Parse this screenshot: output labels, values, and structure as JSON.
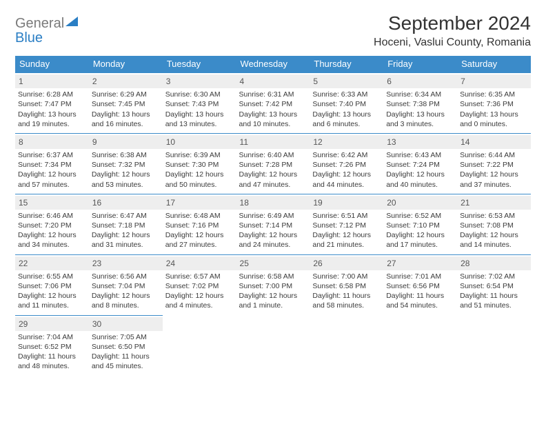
{
  "logo": {
    "general": "General",
    "blue": "Blue"
  },
  "title": "September 2024",
  "subtitle": "Hoceni, Vaslui County, Romania",
  "headers": [
    "Sunday",
    "Monday",
    "Tuesday",
    "Wednesday",
    "Thursday",
    "Friday",
    "Saturday"
  ],
  "colors": {
    "header_bg": "#3b8bc9",
    "header_text": "#ffffff",
    "daynum_bg": "#eeeeee",
    "border": "#3b8bc9"
  },
  "days": [
    {
      "n": "1",
      "sunrise": "6:28 AM",
      "sunset": "7:47 PM",
      "daylight": "13 hours and 19 minutes."
    },
    {
      "n": "2",
      "sunrise": "6:29 AM",
      "sunset": "7:45 PM",
      "daylight": "13 hours and 16 minutes."
    },
    {
      "n": "3",
      "sunrise": "6:30 AM",
      "sunset": "7:43 PM",
      "daylight": "13 hours and 13 minutes."
    },
    {
      "n": "4",
      "sunrise": "6:31 AM",
      "sunset": "7:42 PM",
      "daylight": "13 hours and 10 minutes."
    },
    {
      "n": "5",
      "sunrise": "6:33 AM",
      "sunset": "7:40 PM",
      "daylight": "13 hours and 6 minutes."
    },
    {
      "n": "6",
      "sunrise": "6:34 AM",
      "sunset": "7:38 PM",
      "daylight": "13 hours and 3 minutes."
    },
    {
      "n": "7",
      "sunrise": "6:35 AM",
      "sunset": "7:36 PM",
      "daylight": "13 hours and 0 minutes."
    },
    {
      "n": "8",
      "sunrise": "6:37 AM",
      "sunset": "7:34 PM",
      "daylight": "12 hours and 57 minutes."
    },
    {
      "n": "9",
      "sunrise": "6:38 AM",
      "sunset": "7:32 PM",
      "daylight": "12 hours and 53 minutes."
    },
    {
      "n": "10",
      "sunrise": "6:39 AM",
      "sunset": "7:30 PM",
      "daylight": "12 hours and 50 minutes."
    },
    {
      "n": "11",
      "sunrise": "6:40 AM",
      "sunset": "7:28 PM",
      "daylight": "12 hours and 47 minutes."
    },
    {
      "n": "12",
      "sunrise": "6:42 AM",
      "sunset": "7:26 PM",
      "daylight": "12 hours and 44 minutes."
    },
    {
      "n": "13",
      "sunrise": "6:43 AM",
      "sunset": "7:24 PM",
      "daylight": "12 hours and 40 minutes."
    },
    {
      "n": "14",
      "sunrise": "6:44 AM",
      "sunset": "7:22 PM",
      "daylight": "12 hours and 37 minutes."
    },
    {
      "n": "15",
      "sunrise": "6:46 AM",
      "sunset": "7:20 PM",
      "daylight": "12 hours and 34 minutes."
    },
    {
      "n": "16",
      "sunrise": "6:47 AM",
      "sunset": "7:18 PM",
      "daylight": "12 hours and 31 minutes."
    },
    {
      "n": "17",
      "sunrise": "6:48 AM",
      "sunset": "7:16 PM",
      "daylight": "12 hours and 27 minutes."
    },
    {
      "n": "18",
      "sunrise": "6:49 AM",
      "sunset": "7:14 PM",
      "daylight": "12 hours and 24 minutes."
    },
    {
      "n": "19",
      "sunrise": "6:51 AM",
      "sunset": "7:12 PM",
      "daylight": "12 hours and 21 minutes."
    },
    {
      "n": "20",
      "sunrise": "6:52 AM",
      "sunset": "7:10 PM",
      "daylight": "12 hours and 17 minutes."
    },
    {
      "n": "21",
      "sunrise": "6:53 AM",
      "sunset": "7:08 PM",
      "daylight": "12 hours and 14 minutes."
    },
    {
      "n": "22",
      "sunrise": "6:55 AM",
      "sunset": "7:06 PM",
      "daylight": "12 hours and 11 minutes."
    },
    {
      "n": "23",
      "sunrise": "6:56 AM",
      "sunset": "7:04 PM",
      "daylight": "12 hours and 8 minutes."
    },
    {
      "n": "24",
      "sunrise": "6:57 AM",
      "sunset": "7:02 PM",
      "daylight": "12 hours and 4 minutes."
    },
    {
      "n": "25",
      "sunrise": "6:58 AM",
      "sunset": "7:00 PM",
      "daylight": "12 hours and 1 minute."
    },
    {
      "n": "26",
      "sunrise": "7:00 AM",
      "sunset": "6:58 PM",
      "daylight": "11 hours and 58 minutes."
    },
    {
      "n": "27",
      "sunrise": "7:01 AM",
      "sunset": "6:56 PM",
      "daylight": "11 hours and 54 minutes."
    },
    {
      "n": "28",
      "sunrise": "7:02 AM",
      "sunset": "6:54 PM",
      "daylight": "11 hours and 51 minutes."
    },
    {
      "n": "29",
      "sunrise": "7:04 AM",
      "sunset": "6:52 PM",
      "daylight": "11 hours and 48 minutes."
    },
    {
      "n": "30",
      "sunrise": "7:05 AM",
      "sunset": "6:50 PM",
      "daylight": "11 hours and 45 minutes."
    }
  ],
  "labels": {
    "sunrise": "Sunrise: ",
    "sunset": "Sunset: ",
    "daylight": "Daylight: "
  },
  "start_weekday": 0,
  "grid_cols": 7
}
